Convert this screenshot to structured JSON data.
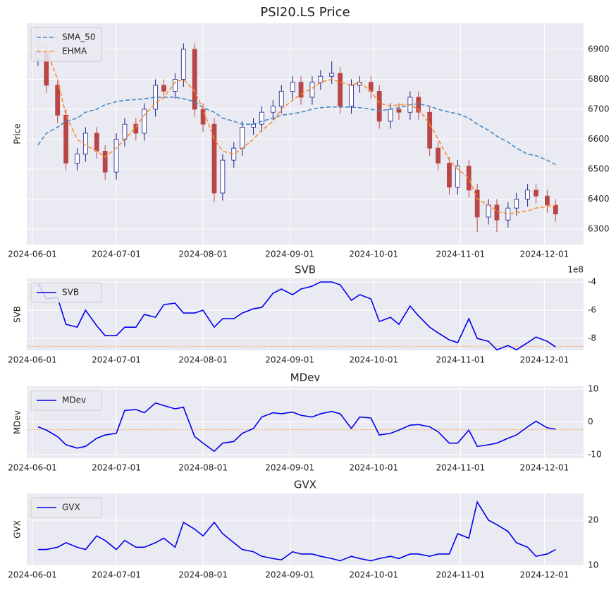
{
  "chart_data": [
    {
      "type": "candlestick",
      "title": "PSI20.LS Price",
      "ylabel": "Price",
      "x": [
        "2024-06-03",
        "2024-06-06",
        "2024-06-10",
        "2024-06-13",
        "2024-06-17",
        "2024-06-20",
        "2024-06-24",
        "2024-06-27",
        "2024-07-01",
        "2024-07-04",
        "2024-07-08",
        "2024-07-11",
        "2024-07-15",
        "2024-07-18",
        "2024-07-22",
        "2024-07-25",
        "2024-07-29",
        "2024-08-01",
        "2024-08-05",
        "2024-08-08",
        "2024-08-12",
        "2024-08-15",
        "2024-08-19",
        "2024-08-22",
        "2024-08-26",
        "2024-08-29",
        "2024-09-02",
        "2024-09-05",
        "2024-09-09",
        "2024-09-12",
        "2024-09-16",
        "2024-09-19",
        "2024-09-23",
        "2024-09-26",
        "2024-09-30",
        "2024-10-03",
        "2024-10-07",
        "2024-10-10",
        "2024-10-14",
        "2024-10-17",
        "2024-10-21",
        "2024-10-24",
        "2024-10-28",
        "2024-10-31",
        "2024-11-04",
        "2024-11-07",
        "2024-11-11",
        "2024-11-14",
        "2024-11-18",
        "2024-11-21",
        "2024-11-25",
        "2024-11-28",
        "2024-12-02",
        "2024-12-05"
      ],
      "open": [
        6870,
        6890,
        6780,
        6680,
        6520,
        6550,
        6620,
        6560,
        6490,
        6600,
        6650,
        6620,
        6700,
        6780,
        6760,
        6800,
        6900,
        6700,
        6650,
        6420,
        6530,
        6570,
        6640,
        6650,
        6690,
        6710,
        6760,
        6790,
        6740,
        6790,
        6810,
        6820,
        6710,
        6780,
        6790,
        6760,
        6660,
        6700,
        6690,
        6740,
        6690,
        6570,
        6520,
        6440,
        6510,
        6430,
        6340,
        6380,
        6330,
        6370,
        6400,
        6430,
        6410,
        6380
      ],
      "high": [
        6910,
        6910,
        6800,
        6700,
        6570,
        6640,
        6640,
        6580,
        6620,
        6670,
        6670,
        6720,
        6800,
        6800,
        6820,
        6920,
        6920,
        6720,
        6670,
        6550,
        6590,
        6660,
        6670,
        6710,
        6730,
        6780,
        6810,
        6810,
        6810,
        6830,
        6860,
        6840,
        6800,
        6810,
        6810,
        6780,
        6720,
        6720,
        6760,
        6760,
        6710,
        6590,
        6540,
        6530,
        6530,
        6450,
        6400,
        6400,
        6390,
        6420,
        6450,
        6450,
        6430,
        6400
      ],
      "low": [
        6845,
        6755,
        6655,
        6495,
        6495,
        6525,
        6535,
        6465,
        6465,
        6575,
        6595,
        6595,
        6675,
        6735,
        6735,
        6775,
        6675,
        6625,
        6390,
        6395,
        6505,
        6545,
        6615,
        6625,
        6665,
        6685,
        6735,
        6715,
        6715,
        6765,
        6785,
        6685,
        6685,
        6755,
        6735,
        6635,
        6635,
        6665,
        6665,
        6665,
        6545,
        6495,
        6415,
        6415,
        6405,
        6290,
        6315,
        6290,
        6305,
        6345,
        6375,
        6385,
        6355,
        6325
      ],
      "close": [
        6890,
        6780,
        6680,
        6520,
        6550,
        6620,
        6560,
        6490,
        6600,
        6650,
        6620,
        6700,
        6780,
        6760,
        6800,
        6900,
        6700,
        6650,
        6420,
        6530,
        6570,
        6640,
        6650,
        6690,
        6710,
        6760,
        6790,
        6740,
        6790,
        6810,
        6820,
        6710,
        6780,
        6790,
        6760,
        6660,
        6700,
        6690,
        6740,
        6690,
        6570,
        6520,
        6440,
        6510,
        6430,
        6340,
        6380,
        6330,
        6370,
        6400,
        6430,
        6410,
        6380,
        6350
      ],
      "up_color": "#1c1c8c",
      "down_color": "#b94646",
      "series": [
        {
          "name": "SMA_50",
          "color": "#4a8bc2",
          "dashed": true,
          "values": [
            6580,
            6620,
            6640,
            6660,
            6670,
            6690,
            6700,
            6715,
            6725,
            6730,
            6732,
            6735,
            6740,
            6740,
            6740,
            6735,
            6725,
            6705,
            6690,
            6670,
            6660,
            6650,
            6650,
            6660,
            6670,
            6680,
            6685,
            6690,
            6700,
            6705,
            6708,
            6707,
            6707,
            6705,
            6700,
            6695,
            6700,
            6705,
            6715,
            6718,
            6710,
            6700,
            6690,
            6685,
            6670,
            6650,
            6630,
            6610,
            6590,
            6570,
            6550,
            6545,
            6530,
            6515
          ]
        },
        {
          "name": "EHMA",
          "color": "#ff8c2e",
          "dashed": true,
          "values": [
            6930,
            6900,
            6800,
            6680,
            6600,
            6580,
            6560,
            6540,
            6570,
            6600,
            6640,
            6680,
            6720,
            6740,
            6790,
            6800,
            6760,
            6700,
            6600,
            6560,
            6550,
            6570,
            6600,
            6630,
            6660,
            6700,
            6730,
            6750,
            6770,
            6790,
            6800,
            6790,
            6780,
            6790,
            6760,
            6720,
            6710,
            6715,
            6715,
            6700,
            6650,
            6600,
            6530,
            6500,
            6470,
            6400,
            6380,
            6360,
            6350,
            6355,
            6360,
            6370,
            6375,
            6380
          ]
        }
      ],
      "xlim": [
        "2024-05-30",
        "2024-12-15"
      ],
      "xticks": [
        "2024-06-01",
        "2024-07-01",
        "2024-08-01",
        "2024-09-01",
        "2024-10-01",
        "2024-11-01",
        "2024-12-01"
      ],
      "ylim": [
        6248,
        6987
      ],
      "yticks": [
        6300,
        6400,
        6500,
        6600,
        6700,
        6800,
        6900
      ],
      "grid": true,
      "legend": "upper left"
    },
    {
      "type": "line",
      "title": "SVB",
      "ylabel": "SVB",
      "offset_text": "1e8",
      "x": [
        "2024-06-03",
        "2024-06-06",
        "2024-06-10",
        "2024-06-13",
        "2024-06-17",
        "2024-06-20",
        "2024-06-24",
        "2024-06-27",
        "2024-07-01",
        "2024-07-04",
        "2024-07-08",
        "2024-07-11",
        "2024-07-15",
        "2024-07-18",
        "2024-07-22",
        "2024-07-25",
        "2024-07-29",
        "2024-08-01",
        "2024-08-05",
        "2024-08-08",
        "2024-08-12",
        "2024-08-15",
        "2024-08-19",
        "2024-08-22",
        "2024-08-26",
        "2024-08-29",
        "2024-09-02",
        "2024-09-05",
        "2024-09-09",
        "2024-09-12",
        "2024-09-16",
        "2024-09-19",
        "2024-09-23",
        "2024-09-26",
        "2024-09-30",
        "2024-10-03",
        "2024-10-07",
        "2024-10-10",
        "2024-10-14",
        "2024-10-17",
        "2024-10-21",
        "2024-10-24",
        "2024-10-28",
        "2024-10-31",
        "2024-11-04",
        "2024-11-07",
        "2024-11-11",
        "2024-11-14",
        "2024-11-18",
        "2024-11-21",
        "2024-11-25",
        "2024-11-28",
        "2024-12-02",
        "2024-12-05"
      ],
      "series": [
        {
          "name": "SVB",
          "color": "#0000ee",
          "values": [
            -4.1,
            -5.2,
            -5.1,
            -7.0,
            -7.2,
            -6.0,
            -7.1,
            -7.8,
            -7.8,
            -7.2,
            -7.2,
            -6.3,
            -6.5,
            -5.6,
            -5.5,
            -6.2,
            -6.2,
            -6.0,
            -7.2,
            -6.6,
            -6.6,
            -6.2,
            -5.9,
            -5.8,
            -4.8,
            -4.5,
            -4.9,
            -4.5,
            -4.3,
            -4.0,
            -4.0,
            -4.2,
            -5.3,
            -4.9,
            -5.2,
            -6.8,
            -6.5,
            -7.0,
            -5.7,
            -6.4,
            -7.2,
            -7.6,
            -8.1,
            -8.3,
            -6.6,
            -8.0,
            -8.2,
            -8.8,
            -8.5,
            -8.8,
            -8.3,
            -7.9,
            -8.2,
            -8.6
          ]
        }
      ],
      "hline": {
        "value": -8.55,
        "color": "#ff8c2e"
      },
      "xlim": [
        "2024-05-30",
        "2024-12-15"
      ],
      "xticks": [
        "2024-06-01",
        "2024-07-01",
        "2024-08-01",
        "2024-09-01",
        "2024-10-01",
        "2024-11-01",
        "2024-12-01"
      ],
      "ylim": [
        -8.84,
        -3.75
      ],
      "yticks": [
        -8,
        -6,
        -4
      ],
      "grid": true,
      "legend": "upper left"
    },
    {
      "type": "line",
      "title": "MDev",
      "ylabel": "MDev",
      "x": [
        "2024-06-03",
        "2024-06-06",
        "2024-06-10",
        "2024-06-13",
        "2024-06-17",
        "2024-06-20",
        "2024-06-24",
        "2024-06-27",
        "2024-07-01",
        "2024-07-04",
        "2024-07-08",
        "2024-07-11",
        "2024-07-15",
        "2024-07-18",
        "2024-07-22",
        "2024-07-25",
        "2024-07-29",
        "2024-08-01",
        "2024-08-05",
        "2024-08-08",
        "2024-08-12",
        "2024-08-15",
        "2024-08-19",
        "2024-08-22",
        "2024-08-26",
        "2024-08-29",
        "2024-09-02",
        "2024-09-05",
        "2024-09-09",
        "2024-09-12",
        "2024-09-16",
        "2024-09-19",
        "2024-09-23",
        "2024-09-26",
        "2024-09-30",
        "2024-10-03",
        "2024-10-07",
        "2024-10-10",
        "2024-10-14",
        "2024-10-17",
        "2024-10-21",
        "2024-10-24",
        "2024-10-28",
        "2024-10-31",
        "2024-11-04",
        "2024-11-07",
        "2024-11-11",
        "2024-11-14",
        "2024-11-18",
        "2024-11-21",
        "2024-11-25",
        "2024-11-28",
        "2024-12-02",
        "2024-12-05"
      ],
      "series": [
        {
          "name": "MDev",
          "color": "#0000ee",
          "values": [
            -1.5,
            -2.5,
            -4.5,
            -7.0,
            -8.0,
            -7.5,
            -5.0,
            -4.0,
            -3.5,
            3.5,
            3.8,
            2.8,
            5.8,
            5.0,
            4.0,
            4.5,
            -4.5,
            -6.5,
            -9.0,
            -6.5,
            -6.0,
            -3.5,
            -2.0,
            1.5,
            2.8,
            2.5,
            3.0,
            2.0,
            1.5,
            2.5,
            3.2,
            2.5,
            -2.0,
            1.5,
            1.2,
            -4.0,
            -3.5,
            -2.5,
            -1.0,
            -0.8,
            -1.5,
            -3.0,
            -6.5,
            -6.5,
            -2.5,
            -7.5,
            -7.0,
            -6.5,
            -5.0,
            -4.0,
            -1.5,
            0.2,
            -1.8,
            -2.2
          ]
        }
      ],
      "hline": {
        "value": -2.4,
        "color": "#ff8c2e"
      },
      "xlim": [
        "2024-05-30",
        "2024-12-15"
      ],
      "xticks": [
        "2024-06-01",
        "2024-07-01",
        "2024-08-01",
        "2024-09-01",
        "2024-10-01",
        "2024-11-01",
        "2024-12-01"
      ],
      "ylim": [
        -11.1,
        10.9
      ],
      "yticks": [
        -10,
        0,
        10
      ],
      "grid": true,
      "legend": "upper left"
    },
    {
      "type": "line",
      "title": "GVX",
      "ylabel": "GVX",
      "x": [
        "2024-06-03",
        "2024-06-06",
        "2024-06-10",
        "2024-06-13",
        "2024-06-17",
        "2024-06-20",
        "2024-06-24",
        "2024-06-27",
        "2024-07-01",
        "2024-07-04",
        "2024-07-08",
        "2024-07-11",
        "2024-07-15",
        "2024-07-18",
        "2024-07-22",
        "2024-07-25",
        "2024-07-29",
        "2024-08-01",
        "2024-08-05",
        "2024-08-08",
        "2024-08-12",
        "2024-08-15",
        "2024-08-19",
        "2024-08-22",
        "2024-08-26",
        "2024-08-29",
        "2024-09-02",
        "2024-09-05",
        "2024-09-09",
        "2024-09-12",
        "2024-09-16",
        "2024-09-19",
        "2024-09-23",
        "2024-09-26",
        "2024-09-30",
        "2024-10-03",
        "2024-10-07",
        "2024-10-10",
        "2024-10-14",
        "2024-10-17",
        "2024-10-21",
        "2024-10-24",
        "2024-10-28",
        "2024-10-31",
        "2024-11-04",
        "2024-11-07",
        "2024-11-11",
        "2024-11-14",
        "2024-11-18",
        "2024-11-21",
        "2024-11-25",
        "2024-11-28",
        "2024-12-02",
        "2024-12-05"
      ],
      "series": [
        {
          "name": "GVX",
          "color": "#0000ee",
          "values": [
            13.5,
            13.5,
            14.0,
            15.0,
            14.0,
            13.5,
            16.5,
            15.5,
            13.5,
            15.5,
            14.0,
            14.0,
            15.0,
            16.0,
            14.0,
            19.5,
            18.0,
            16.5,
            19.5,
            17.0,
            15.0,
            13.5,
            13.0,
            12.0,
            11.5,
            11.2,
            13.0,
            12.5,
            12.5,
            12.0,
            11.5,
            11.0,
            12.0,
            11.5,
            11.0,
            11.5,
            12.0,
            11.5,
            12.5,
            12.5,
            12.0,
            12.5,
            12.5,
            17.0,
            16.0,
            24.0,
            20.0,
            19.0,
            17.5,
            15.0,
            14.0,
            12.0,
            12.5,
            13.5
          ]
        }
      ],
      "xlim": [
        "2024-05-30",
        "2024-12-15"
      ],
      "xticks": [
        "2024-06-01",
        "2024-07-01",
        "2024-08-01",
        "2024-09-01",
        "2024-10-01",
        "2024-11-01",
        "2024-12-01"
      ],
      "ylim": [
        10,
        25.9
      ],
      "yticks": [
        10,
        20
      ],
      "grid": true,
      "legend": "upper left"
    }
  ]
}
